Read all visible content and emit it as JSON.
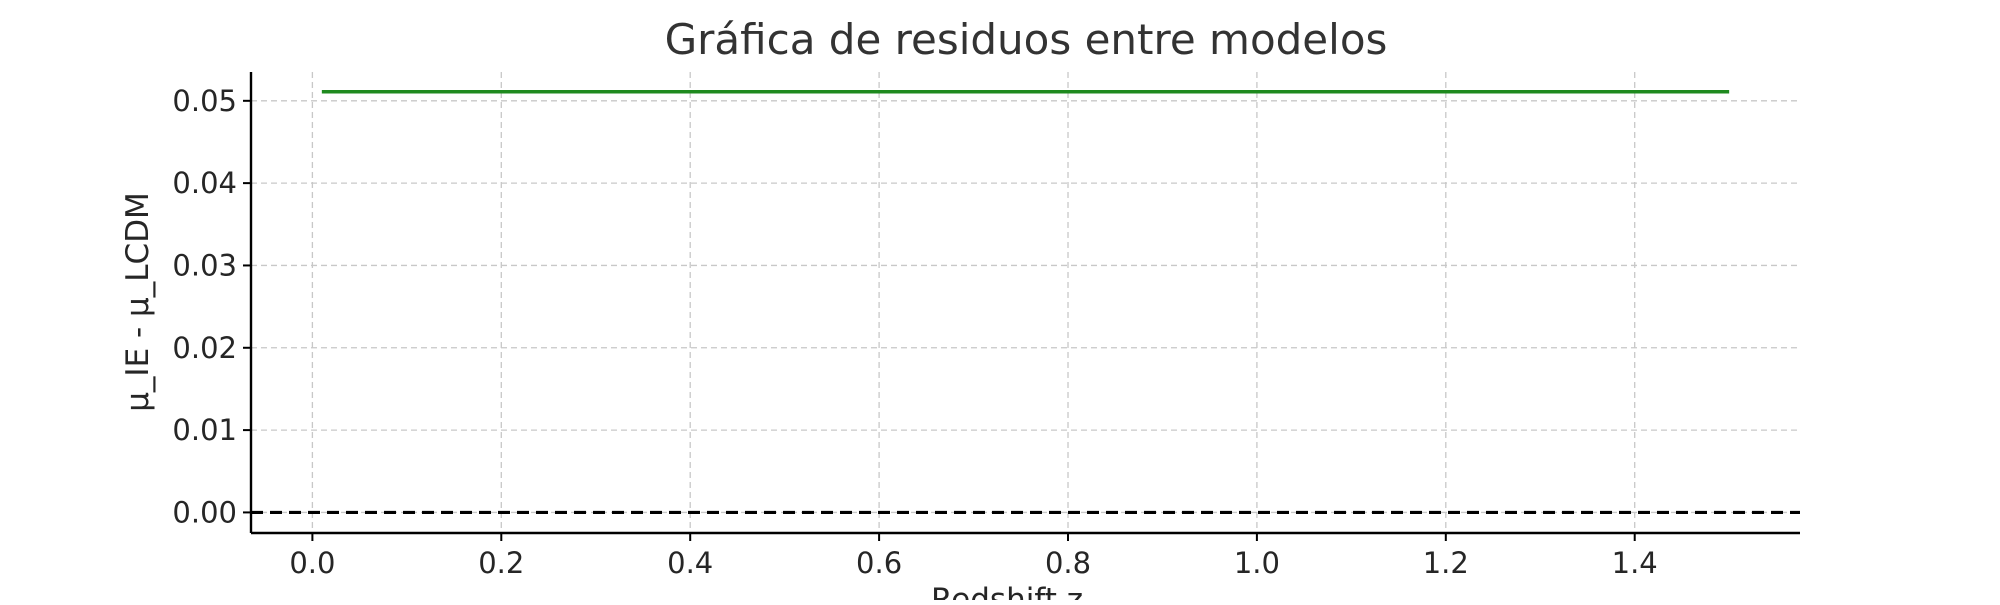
{
  "chart_data": {
    "type": "line",
    "title": "Gráfica de residuos entre modelos",
    "xlabel": "Redshift z",
    "ylabel": "μ_IE - μ_LCDM",
    "xlim": [
      -0.065,
      1.575
    ],
    "ylim": [
      -0.0025,
      0.0535
    ],
    "x_ticks": [
      0.0,
      0.2,
      0.4,
      0.6,
      0.8,
      1.0,
      1.2,
      1.4
    ],
    "x_tick_labels": [
      "0.0",
      "0.2",
      "0.4",
      "0.6",
      "0.8",
      "1.0",
      "1.2",
      "1.4"
    ],
    "y_ticks": [
      0.0,
      0.01,
      0.02,
      0.03,
      0.04,
      0.05
    ],
    "y_tick_labels": [
      "0.00",
      "0.01",
      "0.02",
      "0.03",
      "0.04",
      "0.05"
    ],
    "grid": true,
    "series": [
      {
        "x": [
          0.01,
          1.5
        ],
        "y": [
          0.0511,
          0.0511
        ],
        "color": "#1f8a1f",
        "style": "solid"
      }
    ],
    "reference_line": {
      "y": 0.0,
      "color": "#000000",
      "style": "dashed"
    }
  }
}
